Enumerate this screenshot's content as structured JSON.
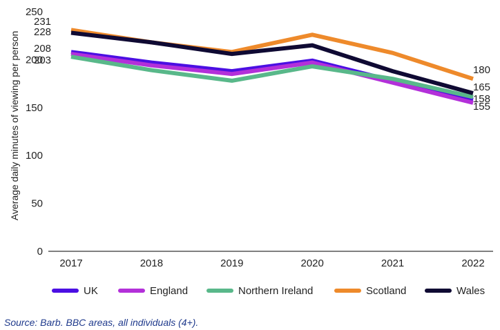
{
  "chart_data": {
    "type": "line",
    "title": "",
    "xlabel": "",
    "ylabel": "Average daily minutes of viewing per person",
    "x": [
      "2017",
      "2018",
      "2019",
      "2020",
      "2021",
      "2022"
    ],
    "ylim": [
      0,
      250
    ],
    "yticks": [
      0,
      50,
      100,
      150,
      200,
      250
    ],
    "grid": false,
    "legend_position": "bottom",
    "series": [
      {
        "name": "UK",
        "color": "#4b0fe3",
        "values": [
          208,
          197,
          188,
          199,
          178,
          158
        ]
      },
      {
        "name": "England",
        "color": "#b330d9",
        "values": [
          206,
          194,
          185,
          197,
          176,
          155
        ]
      },
      {
        "name": "Northern Ireland",
        "color": "#59b88a",
        "values": [
          203,
          189,
          178,
          193,
          180,
          161
        ]
      },
      {
        "name": "Scotland",
        "color": "#ee8a2b",
        "values": [
          231,
          218,
          208,
          226,
          207,
          180
        ]
      },
      {
        "name": "Wales",
        "color": "#0f0a33",
        "values": [
          228,
          218,
          206,
          215,
          188,
          165
        ]
      }
    ],
    "data_labels": [
      {
        "text": "231",
        "series": "Scotland",
        "x": "2017"
      },
      {
        "text": "228",
        "series": "Wales",
        "x": "2017"
      },
      {
        "text": "208",
        "series": "UK",
        "x": "2017"
      },
      {
        "text": "203",
        "series": "Northern Ireland",
        "x": "2017"
      },
      {
        "text": "180",
        "series": "Scotland",
        "x": "2022"
      },
      {
        "text": "165",
        "series": "Wales",
        "x": "2022"
      },
      {
        "text": "158",
        "series": "UK",
        "x": "2022"
      },
      {
        "text": "155",
        "series": "England",
        "x": "2022"
      }
    ]
  },
  "source": "Source: Barb. BBC areas, all individuals (4+)."
}
